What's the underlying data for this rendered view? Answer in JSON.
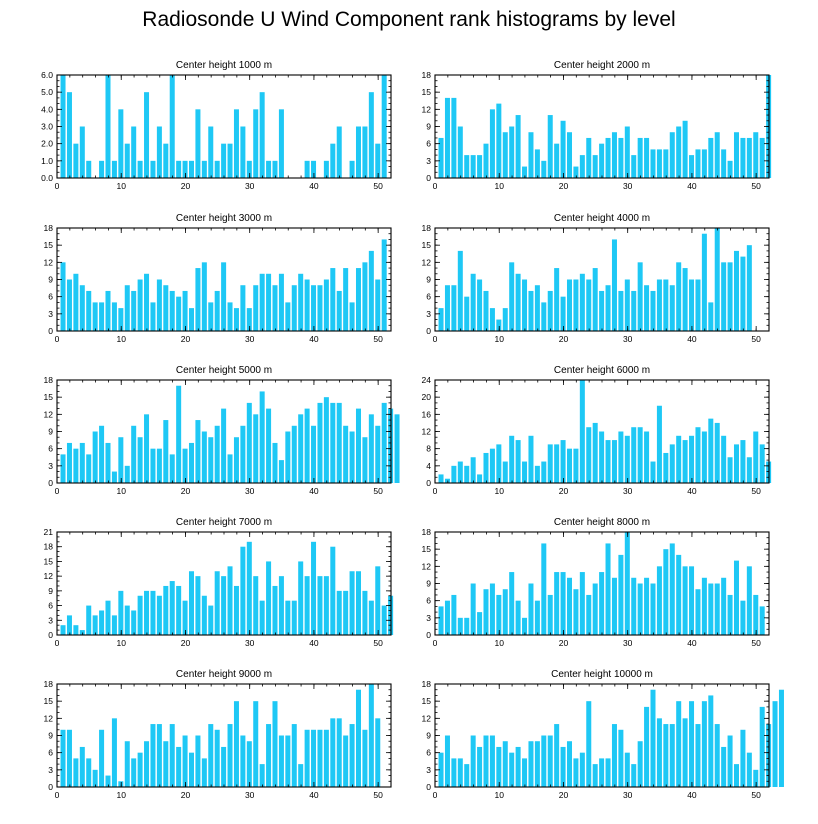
{
  "chart_data": {
    "type": "bar",
    "title": "Radiosonde U Wind Component rank histograms by level",
    "bar_color": "#1ec8f5",
    "x_range": [
      0,
      52
    ],
    "x_ticks": [
      0,
      10,
      20,
      30,
      40,
      50
    ],
    "panels": [
      {
        "title": "Center height 1000 m",
        "ylim": [
          0,
          6
        ],
        "y_ticks": [
          "0.0",
          "1.0",
          "2.0",
          "3.0",
          "4.0",
          "5.0",
          "6.0"
        ],
        "values": [
          6,
          5,
          2,
          3,
          1,
          0,
          1,
          6,
          1,
          4,
          2,
          3,
          1,
          5,
          1,
          3,
          2,
          6,
          1,
          1,
          1,
          4,
          1,
          3,
          1,
          2,
          2,
          4,
          3,
          1,
          4,
          5,
          1,
          1,
          4,
          0,
          0,
          0,
          1,
          1,
          0,
          1,
          2,
          3,
          0,
          1,
          3,
          3,
          5,
          2,
          6
        ]
      },
      {
        "title": "Center height 2000 m",
        "ylim": [
          0,
          18
        ],
        "y_ticks": [
          "0",
          "3",
          "6",
          "9",
          "12",
          "15",
          "18"
        ],
        "values": [
          7,
          14,
          14,
          9,
          4,
          4,
          4,
          6,
          12,
          13,
          8,
          9,
          11,
          2,
          8,
          5,
          3,
          11,
          6,
          10,
          8,
          2,
          4,
          7,
          4,
          6,
          7,
          8,
          7,
          9,
          4,
          7,
          7,
          5,
          5,
          5,
          8,
          9,
          10,
          4,
          5,
          5,
          7,
          8,
          5,
          3,
          8,
          7,
          7,
          8,
          7,
          18
        ]
      },
      {
        "title": "Center height 3000 m",
        "ylim": [
          0,
          18
        ],
        "y_ticks": [
          "0",
          "3",
          "6",
          "9",
          "12",
          "15",
          "18"
        ],
        "values": [
          12,
          9,
          10,
          8,
          7,
          5,
          5,
          7,
          5,
          4,
          8,
          7,
          9,
          10,
          5,
          9,
          8,
          7,
          6,
          7,
          4,
          11,
          12,
          5,
          7,
          12,
          5,
          4,
          8,
          4,
          8,
          10,
          10,
          8,
          10,
          5,
          8,
          10,
          9,
          8,
          8,
          9,
          11,
          7,
          11,
          5,
          11,
          12,
          14,
          9,
          16
        ]
      },
      {
        "title": "Center height 4000 m",
        "ylim": [
          0,
          18
        ],
        "y_ticks": [
          "0",
          "3",
          "6",
          "9",
          "12",
          "15",
          "18"
        ],
        "values": [
          4,
          8,
          8,
          14,
          6,
          10,
          9,
          7,
          4,
          2,
          4,
          12,
          10,
          9,
          7,
          8,
          5,
          7,
          11,
          6,
          9,
          9,
          10,
          9,
          11,
          7,
          8,
          16,
          7,
          9,
          7,
          12,
          8,
          7,
          9,
          9,
          8,
          12,
          11,
          9,
          9,
          17,
          5,
          18,
          12,
          12,
          14,
          13,
          15
        ]
      },
      {
        "title": "Center height 5000 m",
        "ylim": [
          0,
          18
        ],
        "y_ticks": [
          "0",
          "3",
          "6",
          "9",
          "12",
          "15",
          "18"
        ],
        "values": [
          5,
          7,
          6,
          7,
          5,
          9,
          10,
          7,
          2,
          8,
          3,
          10,
          8,
          12,
          6,
          6,
          11,
          5,
          17,
          6,
          7,
          11,
          9,
          8,
          10,
          13,
          5,
          8,
          10,
          14,
          12,
          16,
          13,
          7,
          4,
          9,
          10,
          12,
          13,
          10,
          14,
          15,
          14,
          14,
          10,
          9,
          13,
          8,
          12,
          10,
          14,
          13,
          12
        ]
      },
      {
        "title": "Center height 6000 m",
        "ylim": [
          0,
          24
        ],
        "y_ticks": [
          "0",
          "4",
          "8",
          "12",
          "16",
          "20",
          "24"
        ],
        "values": [
          2,
          1,
          4,
          5,
          4,
          6,
          2,
          7,
          8,
          9,
          5,
          11,
          10,
          5,
          11,
          4,
          5,
          9,
          9,
          10,
          8,
          8,
          24,
          13,
          14,
          12,
          10,
          10,
          12,
          11,
          13,
          13,
          12,
          5,
          18,
          7,
          9,
          11,
          10,
          11,
          13,
          12,
          15,
          14,
          11,
          6,
          9,
          10,
          6,
          12,
          9,
          5
        ]
      },
      {
        "title": "Center height 7000 m",
        "ylim": [
          0,
          21
        ],
        "y_ticks": [
          "0",
          "3",
          "6",
          "9",
          "12",
          "15",
          "18",
          "21"
        ],
        "values": [
          2,
          4,
          2,
          1,
          6,
          4,
          5,
          7,
          4,
          9,
          6,
          5,
          8,
          9,
          9,
          8,
          10,
          11,
          10,
          7,
          13,
          12,
          8,
          6,
          13,
          12,
          14,
          10,
          18,
          19,
          12,
          7,
          15,
          10,
          12,
          7,
          7,
          15,
          12,
          19,
          12,
          12,
          18,
          9,
          9,
          13,
          13,
          9,
          7,
          14,
          6,
          8
        ]
      },
      {
        "title": "Center height 8000 m",
        "ylim": [
          0,
          18
        ],
        "y_ticks": [
          "0",
          "3",
          "6",
          "9",
          "12",
          "15",
          "18"
        ],
        "values": [
          5,
          6,
          7,
          3,
          3,
          9,
          4,
          8,
          9,
          7,
          8,
          11,
          6,
          3,
          9,
          6,
          16,
          7,
          11,
          11,
          10,
          8,
          11,
          7,
          9,
          11,
          16,
          10,
          14,
          18,
          10,
          9,
          10,
          9,
          12,
          15,
          16,
          14,
          12,
          12,
          8,
          10,
          9,
          9,
          10,
          7,
          13,
          6,
          12,
          7,
          5
        ]
      },
      {
        "title": "Center height 9000 m",
        "ylim": [
          0,
          18
        ],
        "y_ticks": [
          "0",
          "3",
          "6",
          "9",
          "12",
          "15",
          "18"
        ],
        "values": [
          10,
          10,
          5,
          7,
          5,
          3,
          10,
          2,
          12,
          1,
          8,
          5,
          6,
          8,
          11,
          11,
          8,
          11,
          7,
          9,
          6,
          9,
          5,
          11,
          10,
          7,
          11,
          15,
          9,
          8,
          15,
          4,
          11,
          15,
          9,
          9,
          11,
          4,
          10,
          10,
          10,
          10,
          12,
          12,
          9,
          11,
          17,
          10,
          18,
          12
        ]
      },
      {
        "title": "Center height 10000 m",
        "ylim": [
          0,
          18
        ],
        "y_ticks": [
          "0",
          "3",
          "6",
          "9",
          "12",
          "15",
          "18"
        ],
        "values": [
          6,
          9,
          5,
          5,
          4,
          9,
          7,
          9,
          9,
          7,
          8,
          6,
          7,
          5,
          8,
          8,
          9,
          9,
          11,
          7,
          8,
          5,
          6,
          15,
          4,
          5,
          5,
          11,
          10,
          6,
          4,
          8,
          14,
          17,
          12,
          11,
          11,
          15,
          12,
          15,
          11,
          15,
          16,
          11,
          7,
          9,
          4,
          10,
          6,
          3,
          14,
          11,
          15,
          17
        ]
      }
    ]
  }
}
